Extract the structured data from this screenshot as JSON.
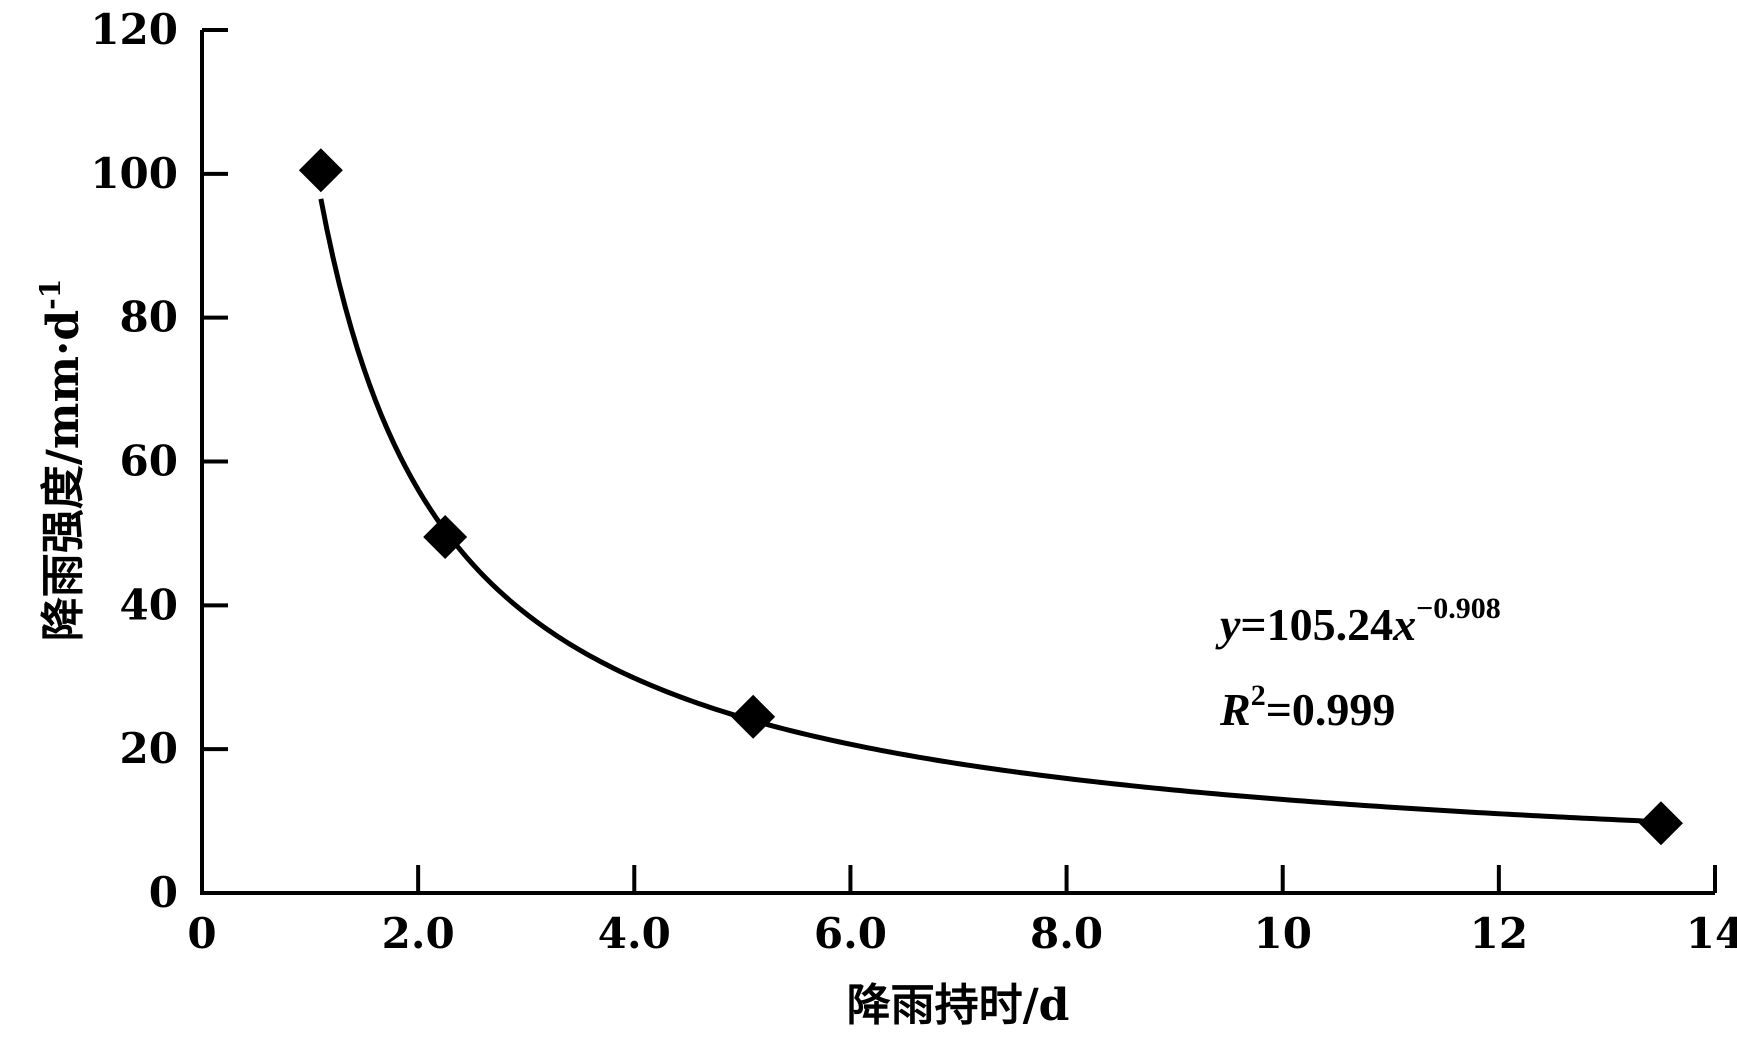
{
  "chart_data": {
    "type": "scatter",
    "xlabel": "降雨持时/d",
    "ylabel": "降雨强度/mm·d",
    "ylabel_superscript": "-1",
    "xlim": [
      0,
      14
    ],
    "ylim": [
      0,
      120
    ],
    "x_ticks": [
      "0",
      "2.0",
      "4.0",
      "6.0",
      "8.0",
      "10",
      "12",
      "14"
    ],
    "x_tick_values": [
      0,
      2,
      4,
      6,
      8,
      10,
      12,
      14
    ],
    "y_ticks": [
      "0",
      "20",
      "40",
      "60",
      "80",
      "100",
      "120"
    ],
    "y_tick_values": [
      0,
      20,
      40,
      60,
      80,
      100,
      120
    ],
    "grid": false,
    "marker": "diamond",
    "series": [
      {
        "x": [
          1.1,
          2.25,
          5.1,
          13.5
        ],
        "y": [
          100.5,
          49.5,
          24.5,
          9.7
        ]
      }
    ],
    "fit": {
      "type": "power",
      "a": 105.24,
      "b": -0.908,
      "x_range": [
        1.1,
        13.5
      ]
    },
    "annotations": {
      "equation": {
        "y_var": "y",
        "eq": "=105.24",
        "x_var": "x",
        "exponent": "−0.908"
      },
      "r2": {
        "r_var": "R",
        "r_sup": "2",
        "value": "=0.999"
      }
    }
  }
}
